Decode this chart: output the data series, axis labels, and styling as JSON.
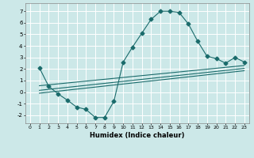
{
  "title": "",
  "xlabel": "Humidex (Indice chaleur)",
  "background_color": "#cce8e8",
  "grid_color": "#ffffff",
  "line_color": "#1a6b6b",
  "xlim": [
    -0.5,
    23.5
  ],
  "ylim": [
    -2.7,
    7.7
  ],
  "xticks": [
    0,
    1,
    2,
    3,
    4,
    5,
    6,
    7,
    8,
    9,
    10,
    11,
    12,
    13,
    14,
    15,
    16,
    17,
    18,
    19,
    20,
    21,
    22,
    23
  ],
  "yticks": [
    -2,
    -1,
    0,
    1,
    2,
    3,
    4,
    5,
    6,
    7
  ],
  "curve1_x": [
    1,
    2,
    3,
    4,
    5,
    6,
    7,
    8,
    9,
    10,
    11,
    12,
    13,
    14,
    15,
    16,
    17,
    18,
    19,
    20,
    21,
    22,
    23
  ],
  "curve1_y": [
    2.1,
    0.5,
    -0.15,
    -0.7,
    -1.3,
    -1.5,
    -2.2,
    -2.2,
    -0.8,
    2.6,
    3.9,
    5.1,
    6.3,
    7.0,
    7.0,
    6.9,
    5.9,
    4.4,
    3.1,
    2.9,
    2.5,
    3.0,
    2.6
  ],
  "line1_x": [
    1,
    23
  ],
  "line1_y": [
    0.55,
    2.3
  ],
  "line2_x": [
    1,
    23
  ],
  "line2_y": [
    0.15,
    2.05
  ],
  "line3_x": [
    1,
    23
  ],
  "line3_y": [
    -0.1,
    1.85
  ]
}
